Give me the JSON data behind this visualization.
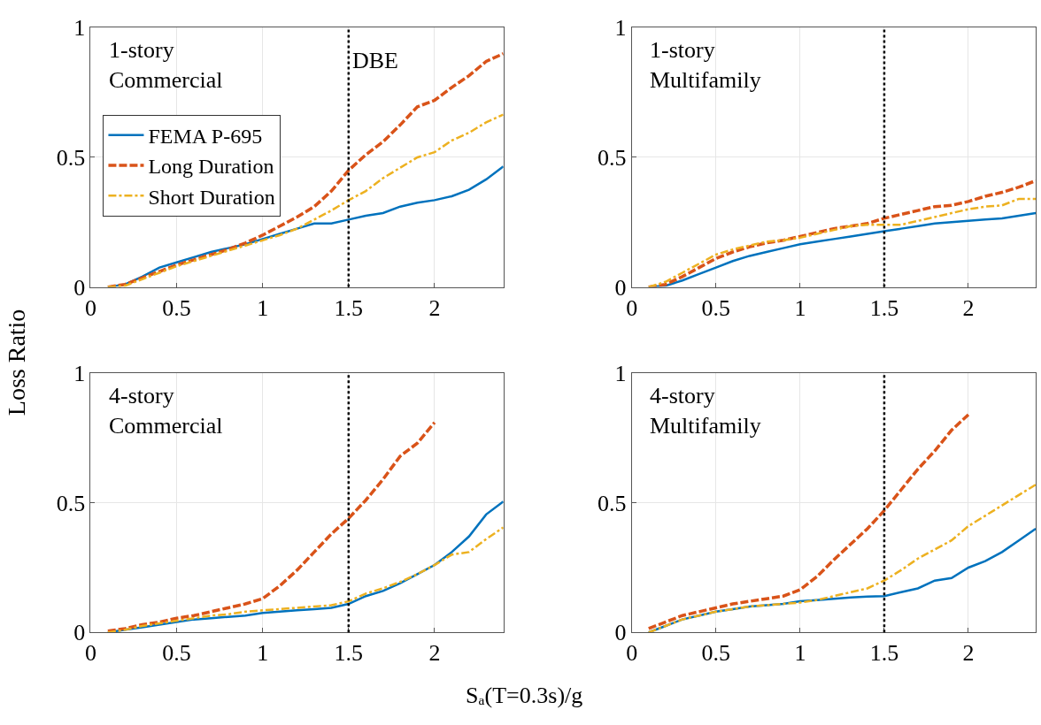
{
  "chart_data": [
    {
      "type": "line",
      "title": "1-story\nCommercial",
      "ylabel": "Loss Ratio",
      "xlim": [
        0,
        2.4
      ],
      "xticks": [
        0,
        0.5,
        1,
        1.5,
        2
      ],
      "ylim": [
        0,
        1
      ],
      "yticks": [
        0,
        0.5,
        1
      ],
      "grid": true,
      "legend": "left",
      "ref_lines": [
        {
          "axis": "x",
          "value": 1.5,
          "label": "DBE",
          "line_style": "dotted",
          "color": "#000000"
        }
      ],
      "series": [
        {
          "name": "FEMA P-695",
          "color": "#0072bd",
          "line_style": "solid",
          "x": [
            0.1,
            0.2,
            0.3,
            0.4,
            0.5,
            0.6,
            0.7,
            0.8,
            0.9,
            1.0,
            1.1,
            1.2,
            1.3,
            1.4,
            1.5,
            1.6,
            1.7,
            1.8,
            1.9,
            2.0,
            2.1,
            2.2,
            2.3,
            2.4
          ],
          "values": [
            0,
            0.01,
            0.04,
            0.075,
            0.095,
            0.115,
            0.135,
            0.15,
            0.165,
            0.185,
            0.205,
            0.225,
            0.245,
            0.245,
            0.26,
            0.275,
            0.285,
            0.31,
            0.325,
            0.335,
            0.35,
            0.375,
            0.415,
            0.465
          ]
        },
        {
          "name": "Long Duration",
          "color": "#d95319",
          "line_style": "dashed",
          "x": [
            0.1,
            0.2,
            0.3,
            0.4,
            0.5,
            0.6,
            0.7,
            0.8,
            0.9,
            1.0,
            1.1,
            1.2,
            1.3,
            1.4,
            1.5,
            1.6,
            1.7,
            1.8,
            1.9,
            2.0,
            2.1,
            2.2,
            2.3,
            2.4
          ],
          "values": [
            0,
            0.01,
            0.035,
            0.06,
            0.085,
            0.105,
            0.125,
            0.145,
            0.17,
            0.2,
            0.235,
            0.27,
            0.31,
            0.37,
            0.45,
            0.51,
            0.56,
            0.625,
            0.695,
            0.72,
            0.77,
            0.815,
            0.87,
            0.9
          ]
        },
        {
          "name": "Short Duration",
          "color": "#edb120",
          "line_style": "dashdot",
          "x": [
            0.1,
            0.2,
            0.3,
            0.4,
            0.5,
            0.6,
            0.7,
            0.8,
            0.9,
            1.0,
            1.1,
            1.2,
            1.3,
            1.4,
            1.5,
            1.6,
            1.7,
            1.8,
            1.9,
            2.0,
            2.1,
            2.2,
            2.3,
            2.4
          ],
          "values": [
            0,
            0.005,
            0.03,
            0.055,
            0.08,
            0.1,
            0.12,
            0.14,
            0.16,
            0.18,
            0.2,
            0.225,
            0.26,
            0.295,
            0.335,
            0.37,
            0.42,
            0.46,
            0.5,
            0.52,
            0.565,
            0.595,
            0.635,
            0.665
          ]
        }
      ]
    },
    {
      "type": "line",
      "title": "1-story\nMultifamily",
      "xlim": [
        0,
        2.4
      ],
      "xticks": [
        0,
        0.5,
        1,
        1.5,
        2
      ],
      "ylim": [
        0,
        1
      ],
      "yticks": [
        0,
        0.5,
        1
      ],
      "grid": true,
      "ref_lines": [
        {
          "axis": "x",
          "value": 1.5,
          "line_style": "dotted",
          "color": "#000000"
        }
      ],
      "series": [
        {
          "color": "#0072bd",
          "line_style": "solid",
          "x": [
            0.1,
            0.2,
            0.3,
            0.4,
            0.5,
            0.6,
            0.7,
            0.8,
            0.9,
            1.0,
            1.1,
            1.2,
            1.3,
            1.4,
            1.5,
            1.6,
            1.7,
            1.8,
            1.9,
            2.0,
            2.1,
            2.2,
            2.3,
            2.4
          ],
          "values": [
            0,
            0.005,
            0.025,
            0.05,
            0.075,
            0.1,
            0.12,
            0.135,
            0.15,
            0.165,
            0.175,
            0.185,
            0.195,
            0.205,
            0.215,
            0.225,
            0.235,
            0.245,
            0.25,
            0.255,
            0.26,
            0.265,
            0.275,
            0.285
          ]
        },
        {
          "color": "#d95319",
          "line_style": "dashed",
          "x": [
            0.1,
            0.2,
            0.3,
            0.4,
            0.5,
            0.6,
            0.7,
            0.8,
            0.9,
            1.0,
            1.1,
            1.2,
            1.3,
            1.4,
            1.5,
            1.6,
            1.7,
            1.8,
            1.9,
            2.0,
            2.1,
            2.2,
            2.3,
            2.4
          ],
          "values": [
            0,
            0.01,
            0.04,
            0.075,
            0.11,
            0.135,
            0.155,
            0.17,
            0.18,
            0.195,
            0.21,
            0.225,
            0.235,
            0.245,
            0.265,
            0.28,
            0.295,
            0.31,
            0.315,
            0.33,
            0.35,
            0.365,
            0.385,
            0.41
          ]
        },
        {
          "color": "#edb120",
          "line_style": "dashdot",
          "x": [
            0.1,
            0.2,
            0.3,
            0.4,
            0.5,
            0.6,
            0.7,
            0.8,
            0.9,
            1.0,
            1.1,
            1.2,
            1.3,
            1.4,
            1.5,
            1.6,
            1.7,
            1.8,
            1.9,
            2.0,
            2.1,
            2.2,
            2.3,
            2.4
          ],
          "values": [
            0,
            0.02,
            0.055,
            0.09,
            0.125,
            0.145,
            0.16,
            0.175,
            0.18,
            0.19,
            0.205,
            0.22,
            0.235,
            0.24,
            0.24,
            0.24,
            0.255,
            0.27,
            0.285,
            0.3,
            0.31,
            0.315,
            0.34,
            0.34
          ]
        }
      ]
    },
    {
      "type": "line",
      "title": "4-story\nCommercial",
      "xlabel": "Sₐ(T=0.3s)/g",
      "xlim": [
        0,
        2.4
      ],
      "xticks": [
        0,
        0.5,
        1,
        1.5,
        2
      ],
      "ylim": [
        0,
        1
      ],
      "yticks": [
        0,
        0.5,
        1
      ],
      "grid": true,
      "ref_lines": [
        {
          "axis": "x",
          "value": 1.5,
          "line_style": "dotted",
          "color": "#000000"
        }
      ],
      "series": [
        {
          "color": "#0072bd",
          "line_style": "solid",
          "x": [
            0.1,
            0.2,
            0.3,
            0.4,
            0.5,
            0.6,
            0.7,
            0.8,
            0.9,
            1.0,
            1.1,
            1.2,
            1.3,
            1.4,
            1.5,
            1.6,
            1.7,
            1.8,
            1.9,
            2.0,
            2.1,
            2.2,
            2.3,
            2.4
          ],
          "values": [
            0,
            0.01,
            0.02,
            0.03,
            0.04,
            0.05,
            0.055,
            0.06,
            0.065,
            0.075,
            0.08,
            0.085,
            0.09,
            0.095,
            0.11,
            0.14,
            0.16,
            0.19,
            0.225,
            0.26,
            0.31,
            0.37,
            0.455,
            0.505
          ]
        },
        {
          "color": "#d95319",
          "line_style": "dashed",
          "x": [
            0.1,
            0.2,
            0.3,
            0.4,
            0.5,
            0.6,
            0.7,
            0.8,
            0.9,
            1.0,
            1.1,
            1.2,
            1.3,
            1.4,
            1.5,
            1.6,
            1.7,
            1.8,
            1.9,
            2.0
          ],
          "values": [
            0.005,
            0.015,
            0.03,
            0.04,
            0.055,
            0.065,
            0.08,
            0.095,
            0.11,
            0.13,
            0.18,
            0.24,
            0.31,
            0.38,
            0.44,
            0.51,
            0.59,
            0.68,
            0.73,
            0.81
          ]
        },
        {
          "color": "#edb120",
          "line_style": "dashdot",
          "x": [
            0.1,
            0.2,
            0.3,
            0.4,
            0.5,
            0.6,
            0.7,
            0.8,
            0.9,
            1.0,
            1.1,
            1.2,
            1.3,
            1.4,
            1.5,
            1.6,
            1.7,
            1.8,
            1.9,
            2.0,
            2.1,
            2.2,
            2.3,
            2.4
          ],
          "values": [
            0,
            0.01,
            0.025,
            0.035,
            0.045,
            0.055,
            0.065,
            0.07,
            0.08,
            0.085,
            0.09,
            0.095,
            0.1,
            0.105,
            0.12,
            0.15,
            0.17,
            0.195,
            0.225,
            0.26,
            0.3,
            0.31,
            0.36,
            0.405
          ]
        }
      ]
    },
    {
      "type": "line",
      "title": "4-story\nMultifamily",
      "xlim": [
        0,
        2.4
      ],
      "xticks": [
        0,
        0.5,
        1,
        1.5,
        2
      ],
      "ylim": [
        0,
        1
      ],
      "yticks": [
        0,
        0.5,
        1
      ],
      "grid": true,
      "ref_lines": [
        {
          "axis": "x",
          "value": 1.5,
          "line_style": "dotted",
          "color": "#000000"
        }
      ],
      "series": [
        {
          "color": "#0072bd",
          "line_style": "solid",
          "x": [
            0.1,
            0.2,
            0.3,
            0.4,
            0.5,
            0.6,
            0.7,
            0.8,
            0.9,
            1.0,
            1.1,
            1.2,
            1.3,
            1.4,
            1.5,
            1.6,
            1.7,
            1.8,
            1.9,
            2.0,
            2.1,
            2.2,
            2.3,
            2.4
          ],
          "values": [
            0,
            0.025,
            0.05,
            0.065,
            0.08,
            0.09,
            0.1,
            0.105,
            0.11,
            0.12,
            0.125,
            0.13,
            0.135,
            0.138,
            0.14,
            0.155,
            0.17,
            0.2,
            0.21,
            0.25,
            0.275,
            0.31,
            0.355,
            0.4
          ]
        },
        {
          "color": "#d95319",
          "line_style": "dashed",
          "x": [
            0.1,
            0.2,
            0.3,
            0.4,
            0.5,
            0.6,
            0.7,
            0.8,
            0.9,
            1.0,
            1.1,
            1.2,
            1.3,
            1.4,
            1.5,
            1.6,
            1.7,
            1.8,
            1.9,
            2.0
          ],
          "values": [
            0.015,
            0.04,
            0.065,
            0.08,
            0.095,
            0.11,
            0.12,
            0.13,
            0.14,
            0.165,
            0.215,
            0.28,
            0.34,
            0.4,
            0.47,
            0.55,
            0.63,
            0.7,
            0.78,
            0.84
          ]
        },
        {
          "color": "#edb120",
          "line_style": "dashdot",
          "x": [
            0.1,
            0.2,
            0.3,
            0.4,
            0.5,
            0.6,
            0.7,
            0.8,
            0.9,
            1.0,
            1.1,
            1.2,
            1.3,
            1.4,
            1.5,
            1.6,
            1.7,
            1.8,
            1.9,
            2.0,
            2.1,
            2.2,
            2.3,
            2.4
          ],
          "values": [
            0,
            0.025,
            0.05,
            0.065,
            0.08,
            0.09,
            0.1,
            0.105,
            0.11,
            0.115,
            0.125,
            0.14,
            0.155,
            0.17,
            0.2,
            0.24,
            0.285,
            0.32,
            0.355,
            0.41,
            0.45,
            0.49,
            0.53,
            0.57
          ]
        }
      ]
    }
  ]
}
